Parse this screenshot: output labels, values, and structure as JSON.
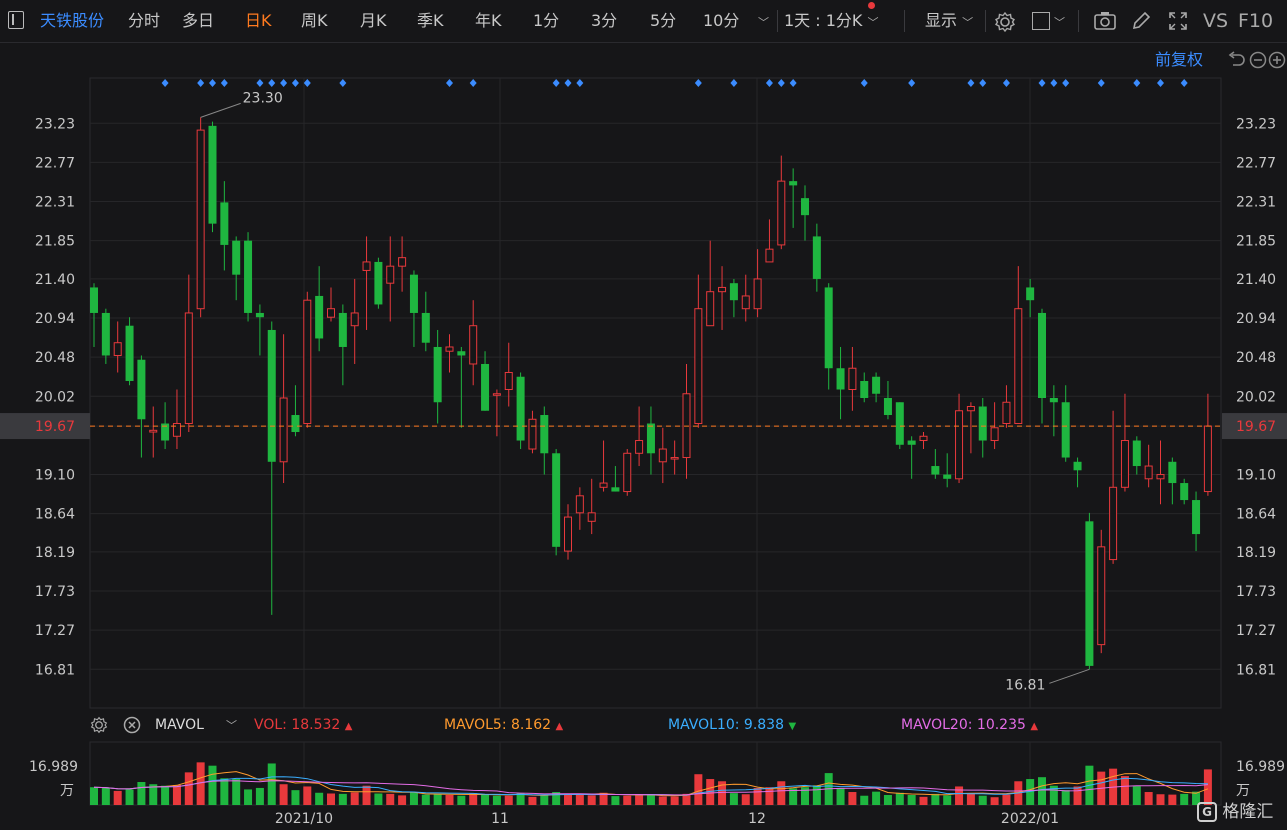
{
  "toolbar": {
    "stock_name": "天铁股份",
    "tabs": [
      "分时",
      "多日",
      "日K",
      "周K",
      "月K",
      "季K",
      "年K",
      "1分",
      "3分",
      "5分",
      "10分"
    ],
    "active_tab": "日K",
    "period_select": "1天 : 1分K",
    "display_label": "显示",
    "vs_label": "VS",
    "f10_label": "F10"
  },
  "subbar": {
    "adjust_label": "前复权"
  },
  "price_axis": {
    "ticks": [
      "23.23",
      "22.77",
      "22.31",
      "21.85",
      "21.40",
      "20.94",
      "20.48",
      "20.02",
      "19.67",
      "19.10",
      "18.64",
      "18.19",
      "17.73",
      "17.27",
      "16.81"
    ],
    "current_price": "19.67",
    "high_label": "23.30",
    "low_label": "16.81"
  },
  "date_axis": [
    "2021/10",
    "11",
    "12",
    "2022/01"
  ],
  "volume_bar": {
    "indicator": "MAVOL",
    "vol_label": "VOL:",
    "vol_value": "18.532",
    "mavol5_label": "MAVOL5:",
    "mavol5_value": "8.162",
    "mavol10_label": "MAVOL10:",
    "mavol10_value": "9.838",
    "mavol20_label": "MAVOL20:",
    "mavol20_value": "10.235",
    "axis_max": "16.989",
    "axis_unit": "万"
  },
  "watermark": "格隆汇",
  "colors": {
    "up": "#e8393c",
    "down": "#1fb640",
    "accent": "#ff7a1f",
    "blue": "#3b8cff",
    "mavol5": "#ff9a2e",
    "mavol10": "#3aaeff",
    "mavol20": "#e36ce6"
  },
  "chart_data": {
    "type": "candlestick",
    "price_unit": "CNY",
    "candles": [
      {
        "o": 21.3,
        "c": 21.0,
        "h": 21.35,
        "l": 20.6
      },
      {
        "o": 21.0,
        "c": 20.5,
        "h": 21.05,
        "l": 20.4
      },
      {
        "o": 20.5,
        "c": 20.65,
        "h": 20.9,
        "l": 20.3
      },
      {
        "o": 20.85,
        "c": 20.2,
        "h": 20.95,
        "l": 20.15
      },
      {
        "o": 20.45,
        "c": 19.75,
        "h": 20.5,
        "l": 19.3
      },
      {
        "o": 19.6,
        "c": 19.62,
        "h": 19.9,
        "l": 19.3
      },
      {
        "o": 19.7,
        "c": 19.5,
        "h": 19.95,
        "l": 19.4
      },
      {
        "o": 19.55,
        "c": 19.7,
        "h": 20.1,
        "l": 19.4
      },
      {
        "o": 19.7,
        "c": 21.0,
        "h": 21.45,
        "l": 19.6
      },
      {
        "o": 21.05,
        "c": 23.15,
        "h": 23.3,
        "l": 20.95
      },
      {
        "o": 23.2,
        "c": 22.05,
        "h": 23.25,
        "l": 21.95
      },
      {
        "o": 22.3,
        "c": 21.8,
        "h": 22.55,
        "l": 21.5
      },
      {
        "o": 21.85,
        "c": 21.45,
        "h": 21.9,
        "l": 21.15
      },
      {
        "o": 21.85,
        "c": 21.0,
        "h": 21.95,
        "l": 20.9
      },
      {
        "o": 21.0,
        "c": 20.95,
        "h": 21.1,
        "l": 20.5
      },
      {
        "o": 20.8,
        "c": 19.25,
        "h": 20.9,
        "l": 17.45
      },
      {
        "o": 19.25,
        "c": 20.0,
        "h": 20.75,
        "l": 19.0
      },
      {
        "o": 19.8,
        "c": 19.6,
        "h": 20.15,
        "l": 19.55
      },
      {
        "o": 19.7,
        "c": 21.15,
        "h": 21.25,
        "l": 19.65
      },
      {
        "o": 21.2,
        "c": 20.7,
        "h": 21.55,
        "l": 20.55
      },
      {
        "o": 20.95,
        "c": 21.05,
        "h": 21.3,
        "l": 20.9
      },
      {
        "o": 21.0,
        "c": 20.6,
        "h": 21.1,
        "l": 20.15
      },
      {
        "o": 20.85,
        "c": 21.0,
        "h": 21.4,
        "l": 20.4
      },
      {
        "o": 21.5,
        "c": 21.6,
        "h": 21.9,
        "l": 20.8
      },
      {
        "o": 21.6,
        "c": 21.1,
        "h": 21.65,
        "l": 21.05
      },
      {
        "o": 21.35,
        "c": 21.55,
        "h": 21.9,
        "l": 20.9
      },
      {
        "o": 21.55,
        "c": 21.65,
        "h": 21.9,
        "l": 21.25
      },
      {
        "o": 21.45,
        "c": 21.0,
        "h": 21.5,
        "l": 20.6
      },
      {
        "o": 21.0,
        "c": 20.65,
        "h": 21.25,
        "l": 20.55
      },
      {
        "o": 20.6,
        "c": 19.95,
        "h": 20.8,
        "l": 19.7
      },
      {
        "o": 20.55,
        "c": 20.6,
        "h": 20.75,
        "l": 20.3
      },
      {
        "o": 20.55,
        "c": 20.5,
        "h": 20.6,
        "l": 19.65
      },
      {
        "o": 20.4,
        "c": 20.85,
        "h": 21.15,
        "l": 20.15
      },
      {
        "o": 20.4,
        "c": 19.85,
        "h": 20.55,
        "l": 19.85
      },
      {
        "o": 20.05,
        "c": 20.05,
        "h": 20.1,
        "l": 19.55
      },
      {
        "o": 20.1,
        "c": 20.3,
        "h": 20.65,
        "l": 19.9
      },
      {
        "o": 20.25,
        "c": 19.5,
        "h": 20.3,
        "l": 19.4
      },
      {
        "o": 19.4,
        "c": 19.75,
        "h": 19.85,
        "l": 19.35
      },
      {
        "o": 19.8,
        "c": 19.35,
        "h": 19.9,
        "l": 19.1
      },
      {
        "o": 19.35,
        "c": 18.25,
        "h": 19.4,
        "l": 18.15
      },
      {
        "o": 18.2,
        "c": 18.6,
        "h": 18.75,
        "l": 18.1
      },
      {
        "o": 18.65,
        "c": 18.85,
        "h": 18.95,
        "l": 18.45
      },
      {
        "o": 18.55,
        "c": 18.65,
        "h": 19.05,
        "l": 18.4
      },
      {
        "o": 18.95,
        "c": 19.0,
        "h": 19.5,
        "l": 18.9
      },
      {
        "o": 18.95,
        "c": 18.9,
        "h": 19.2,
        "l": 18.9
      },
      {
        "o": 18.9,
        "c": 19.35,
        "h": 19.4,
        "l": 18.85
      },
      {
        "o": 19.35,
        "c": 19.5,
        "h": 19.9,
        "l": 19.2
      },
      {
        "o": 19.7,
        "c": 19.35,
        "h": 19.9,
        "l": 19.1
      },
      {
        "o": 19.25,
        "c": 19.4,
        "h": 19.65,
        "l": 19.0
      },
      {
        "o": 19.3,
        "c": 19.3,
        "h": 19.5,
        "l": 19.1
      },
      {
        "o": 19.3,
        "c": 20.05,
        "h": 20.4,
        "l": 19.05
      },
      {
        "o": 19.7,
        "c": 21.05,
        "h": 21.45,
        "l": 19.65
      },
      {
        "o": 20.85,
        "c": 21.25,
        "h": 21.85,
        "l": 20.85
      },
      {
        "o": 21.25,
        "c": 21.3,
        "h": 21.55,
        "l": 20.8
      },
      {
        "o": 21.35,
        "c": 21.15,
        "h": 21.4,
        "l": 20.95
      },
      {
        "o": 21.05,
        "c": 21.2,
        "h": 21.45,
        "l": 20.9
      },
      {
        "o": 21.05,
        "c": 21.4,
        "h": 21.75,
        "l": 20.95
      },
      {
        "o": 21.6,
        "c": 21.75,
        "h": 22.1,
        "l": 21.6
      },
      {
        "o": 21.8,
        "c": 22.55,
        "h": 22.85,
        "l": 21.75
      },
      {
        "o": 22.55,
        "c": 22.5,
        "h": 22.7,
        "l": 22.0
      },
      {
        "o": 22.35,
        "c": 22.15,
        "h": 22.5,
        "l": 21.85
      },
      {
        "o": 21.9,
        "c": 21.4,
        "h": 22.05,
        "l": 21.25
      },
      {
        "o": 21.3,
        "c": 20.35,
        "h": 21.35,
        "l": 20.1
      },
      {
        "o": 20.35,
        "c": 20.1,
        "h": 20.6,
        "l": 19.75
      },
      {
        "o": 20.1,
        "c": 20.35,
        "h": 20.6,
        "l": 19.85
      },
      {
        "o": 20.2,
        "c": 20.0,
        "h": 20.3,
        "l": 19.95
      },
      {
        "o": 20.25,
        "c": 20.05,
        "h": 20.3,
        "l": 19.95
      },
      {
        "o": 20.0,
        "c": 19.8,
        "h": 20.2,
        "l": 19.75
      },
      {
        "o": 19.95,
        "c": 19.45,
        "h": 19.95,
        "l": 19.4
      },
      {
        "o": 19.5,
        "c": 19.45,
        "h": 19.55,
        "l": 19.05
      },
      {
        "o": 19.5,
        "c": 19.55,
        "h": 19.6,
        "l": 19.4
      },
      {
        "o": 19.2,
        "c": 19.1,
        "h": 19.4,
        "l": 19.05
      },
      {
        "o": 19.1,
        "c": 19.05,
        "h": 19.35,
        "l": 18.95
      },
      {
        "o": 19.05,
        "c": 19.85,
        "h": 20.05,
        "l": 19.0
      },
      {
        "o": 19.85,
        "c": 19.9,
        "h": 19.95,
        "l": 19.35
      },
      {
        "o": 19.9,
        "c": 19.5,
        "h": 20.0,
        "l": 19.3
      },
      {
        "o": 19.5,
        "c": 19.65,
        "h": 19.95,
        "l": 19.4
      },
      {
        "o": 19.7,
        "c": 19.95,
        "h": 20.15,
        "l": 19.65
      },
      {
        "o": 19.7,
        "c": 21.05,
        "h": 21.55,
        "l": 19.7
      },
      {
        "o": 21.3,
        "c": 21.15,
        "h": 21.4,
        "l": 20.95
      },
      {
        "o": 21.0,
        "c": 20.0,
        "h": 21.05,
        "l": 19.7
      },
      {
        "o": 20.0,
        "c": 19.95,
        "h": 20.15,
        "l": 19.55
      },
      {
        "o": 19.95,
        "c": 19.3,
        "h": 20.15,
        "l": 19.25
      },
      {
        "o": 19.25,
        "c": 19.15,
        "h": 19.3,
        "l": 18.95
      },
      {
        "o": 18.55,
        "c": 16.85,
        "h": 18.65,
        "l": 16.81
      },
      {
        "o": 17.1,
        "c": 18.25,
        "h": 18.45,
        "l": 17.0
      },
      {
        "o": 18.1,
        "c": 18.95,
        "h": 19.85,
        "l": 18.05
      },
      {
        "o": 18.95,
        "c": 19.5,
        "h": 20.05,
        "l": 18.9
      },
      {
        "o": 19.5,
        "c": 19.2,
        "h": 19.55,
        "l": 19.1
      },
      {
        "o": 19.05,
        "c": 19.2,
        "h": 19.45,
        "l": 18.95
      },
      {
        "o": 19.05,
        "c": 19.1,
        "h": 19.5,
        "l": 18.75
      },
      {
        "o": 19.25,
        "c": 19.0,
        "h": 19.3,
        "l": 18.75
      },
      {
        "o": 19.0,
        "c": 18.8,
        "h": 19.05,
        "l": 18.75
      },
      {
        "o": 18.8,
        "c": 18.4,
        "h": 18.9,
        "l": 18.2
      },
      {
        "o": 18.9,
        "c": 19.67,
        "h": 20.05,
        "l": 18.85
      }
    ],
    "volumes": [
      {
        "v": 4.8,
        "up": false
      },
      {
        "v": 4.6,
        "up": false
      },
      {
        "v": 3.8,
        "up": true
      },
      {
        "v": 4.2,
        "up": false
      },
      {
        "v": 6.2,
        "up": false
      },
      {
        "v": 5.6,
        "up": false
      },
      {
        "v": 5.2,
        "up": false
      },
      {
        "v": 5.4,
        "up": true
      },
      {
        "v": 8.8,
        "up": true
      },
      {
        "v": 11.5,
        "up": true
      },
      {
        "v": 10.6,
        "up": false
      },
      {
        "v": 7.2,
        "up": false
      },
      {
        "v": 7.0,
        "up": false
      },
      {
        "v": 4.2,
        "up": false
      },
      {
        "v": 4.6,
        "up": false
      },
      {
        "v": 11.2,
        "up": false
      },
      {
        "v": 5.6,
        "up": true
      },
      {
        "v": 4.0,
        "up": false
      },
      {
        "v": 5.0,
        "up": true
      },
      {
        "v": 3.3,
        "up": false
      },
      {
        "v": 3.1,
        "up": true
      },
      {
        "v": 3.0,
        "up": false
      },
      {
        "v": 3.4,
        "up": true
      },
      {
        "v": 5.2,
        "up": true
      },
      {
        "v": 3.1,
        "up": false
      },
      {
        "v": 3.0,
        "up": true
      },
      {
        "v": 2.6,
        "up": true
      },
      {
        "v": 3.4,
        "up": false
      },
      {
        "v": 2.8,
        "up": false
      },
      {
        "v": 2.9,
        "up": false
      },
      {
        "v": 2.7,
        "up": true
      },
      {
        "v": 2.5,
        "up": false
      },
      {
        "v": 3.2,
        "up": true
      },
      {
        "v": 2.9,
        "up": false
      },
      {
        "v": 2.5,
        "up": false
      },
      {
        "v": 2.5,
        "up": true
      },
      {
        "v": 3.2,
        "up": false
      },
      {
        "v": 2.2,
        "up": true
      },
      {
        "v": 2.6,
        "up": false
      },
      {
        "v": 3.5,
        "up": false
      },
      {
        "v": 3.1,
        "up": true
      },
      {
        "v": 2.9,
        "up": true
      },
      {
        "v": 2.6,
        "up": true
      },
      {
        "v": 3.3,
        "up": true
      },
      {
        "v": 2.4,
        "up": false
      },
      {
        "v": 2.5,
        "up": true
      },
      {
        "v": 2.7,
        "up": true
      },
      {
        "v": 2.8,
        "up": false
      },
      {
        "v": 2.3,
        "up": true
      },
      {
        "v": 2.3,
        "up": true
      },
      {
        "v": 3.0,
        "up": true
      },
      {
        "v": 8.3,
        "up": true
      },
      {
        "v": 7.0,
        "up": true
      },
      {
        "v": 6.4,
        "up": true
      },
      {
        "v": 3.2,
        "up": false
      },
      {
        "v": 2.9,
        "up": true
      },
      {
        "v": 4.6,
        "up": true
      },
      {
        "v": 4.8,
        "up": true
      },
      {
        "v": 6.4,
        "up": true
      },
      {
        "v": 4.5,
        "up": false
      },
      {
        "v": 4.8,
        "up": false
      },
      {
        "v": 5.3,
        "up": false
      },
      {
        "v": 8.6,
        "up": false
      },
      {
        "v": 4.6,
        "up": false
      },
      {
        "v": 3.5,
        "up": true
      },
      {
        "v": 2.5,
        "up": false
      },
      {
        "v": 3.6,
        "up": false
      },
      {
        "v": 2.7,
        "up": false
      },
      {
        "v": 3.3,
        "up": false
      },
      {
        "v": 2.7,
        "up": false
      },
      {
        "v": 2.2,
        "up": true
      },
      {
        "v": 3.0,
        "up": false
      },
      {
        "v": 2.6,
        "up": false
      },
      {
        "v": 5.0,
        "up": true
      },
      {
        "v": 3.0,
        "up": true
      },
      {
        "v": 2.5,
        "up": false
      },
      {
        "v": 2.1,
        "up": true
      },
      {
        "v": 2.8,
        "up": true
      },
      {
        "v": 6.4,
        "up": true
      },
      {
        "v": 7.0,
        "up": false
      },
      {
        "v": 7.5,
        "up": false
      },
      {
        "v": 5.2,
        "up": false
      },
      {
        "v": 4.0,
        "up": false
      },
      {
        "v": 5.0,
        "up": true
      },
      {
        "v": 10.6,
        "up": false
      },
      {
        "v": 9.0,
        "up": true
      },
      {
        "v": 9.8,
        "up": true
      },
      {
        "v": 7.8,
        "up": true
      },
      {
        "v": 5.1,
        "up": false
      },
      {
        "v": 3.5,
        "up": true
      },
      {
        "v": 2.9,
        "up": true
      },
      {
        "v": 2.8,
        "up": true
      },
      {
        "v": 3.0,
        "up": false
      },
      {
        "v": 3.6,
        "up": false
      },
      {
        "v": 9.6,
        "up": true
      }
    ]
  }
}
